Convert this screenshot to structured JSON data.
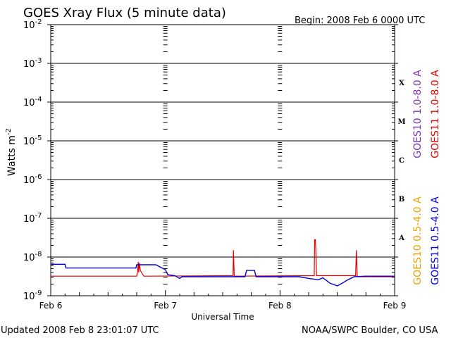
{
  "header": {
    "title": "GOES Xray Flux (5 minute data)",
    "begin": "Begin:  2008 Feb 6 0000 UTC"
  },
  "footer": {
    "updated": "Updated 2008 Feb  8 23:01:07 UTC",
    "credit": "NOAA/SWPC Boulder, CO USA"
  },
  "colors": {
    "goes10_long": "#7b2fb5",
    "goes11_long": "#e00000",
    "goes10_short": "#f0a000",
    "goes11_short": "#0000e0"
  },
  "chart_data": {
    "type": "line",
    "title": "GOES Xray Flux (5 minute data)",
    "xlabel": "Universal Time",
    "ylabel": "Watts m",
    "ylabel_exp": "-2",
    "y_scale": "log",
    "ylim": [
      1e-09,
      0.01
    ],
    "xlim": [
      "2008-02-06T00:00",
      "2008-02-09T00:00"
    ],
    "x_ticks": [
      "Feb 6",
      "Feb 7",
      "Feb 8",
      "Feb 9"
    ],
    "y_ticks": [
      {
        "base": "10",
        "exp": "-2",
        "value": 0.01
      },
      {
        "base": "10",
        "exp": "-3",
        "value": 0.001
      },
      {
        "base": "10",
        "exp": "-4",
        "value": 0.0001
      },
      {
        "base": "10",
        "exp": "-5",
        "value": 1e-05
      },
      {
        "base": "10",
        "exp": "-6",
        "value": 1e-06
      },
      {
        "base": "10",
        "exp": "-7",
        "value": 1e-07
      },
      {
        "base": "10",
        "exp": "-8",
        "value": 1e-08
      },
      {
        "base": "10",
        "exp": "-9",
        "value": 1e-09
      }
    ],
    "flare_classes": [
      {
        "label": "X",
        "value": 0.00032
      },
      {
        "label": "M",
        "value": 3.2e-05
      },
      {
        "label": "C",
        "value": 3.2e-06
      },
      {
        "label": "B",
        "value": 3.2e-07
      },
      {
        "label": "A",
        "value": 3.2e-08
      }
    ],
    "legend": [
      {
        "label": "GOES10 1.0-8.0 A",
        "color": "#7b2fb5"
      },
      {
        "label": "GOES11 1.0-8.0 A",
        "color": "#e00000"
      },
      {
        "label": "GOES10 0.5-4.0 A",
        "color": "#f0a000"
      },
      {
        "label": "GOES11 0.5-4.0 A",
        "color": "#0000e0"
      }
    ],
    "grid": true,
    "series": [
      {
        "name": "GOES11 1.0-8.0 A",
        "color": "#e00000",
        "x": [
          "2008-02-06T00:00",
          "2008-02-06T18:00",
          "2008-02-06T18:10",
          "2008-02-06T18:20",
          "2008-02-06T18:25",
          "2008-02-06T18:35",
          "2008-02-06T18:45",
          "2008-02-06T19:00",
          "2008-02-06T19:30",
          "2008-02-06T20:00",
          "2008-02-07T14:10",
          "2008-02-07T14:15",
          "2008-02-07T14:25",
          "2008-02-07T14:35",
          "2008-02-08T07:10",
          "2008-02-08T07:15",
          "2008-02-08T07:25",
          "2008-02-08T07:40",
          "2008-02-08T15:50",
          "2008-02-08T16:00",
          "2008-02-08T16:10",
          "2008-02-08T16:25",
          "2008-02-09T00:00"
        ],
        "values": [
          3.2e-09,
          3.2e-09,
          4e-09,
          7.5e-09,
          4e-09,
          7e-09,
          4.5e-09,
          4e-09,
          3.2e-09,
          3.2e-09,
          3.3e-09,
          1.5e-08,
          3.3e-09,
          3.2e-09,
          3.3e-09,
          2.8e-08,
          2.8e-08,
          3.3e-09,
          3.3e-09,
          1.5e-08,
          3.3e-09,
          3.1e-09,
          3.1e-09
        ]
      },
      {
        "name": "GOES11 0.5-4.0 A",
        "color": "#0000e0",
        "x": [
          "2008-02-06T00:00",
          "2008-02-06T03:00",
          "2008-02-06T03:10",
          "2008-02-06T12:00",
          "2008-02-06T17:50",
          "2008-02-06T18:00",
          "2008-02-06T22:00",
          "2008-02-07T00:00",
          "2008-02-07T00:30",
          "2008-02-07T02:00",
          "2008-02-07T03:00",
          "2008-02-07T03:30",
          "2008-02-07T04:00",
          "2008-02-07T12:00",
          "2008-02-07T16:40",
          "2008-02-07T17:00",
          "2008-02-07T18:40",
          "2008-02-07T19:00",
          "2008-02-07T20:00",
          "2008-02-08T00:00",
          "2008-02-08T04:00",
          "2008-02-08T06:00",
          "2008-02-08T08:00",
          "2008-02-08T09:00",
          "2008-02-08T10:30",
          "2008-02-08T12:00",
          "2008-02-08T13:00",
          "2008-02-08T14:00",
          "2008-02-08T15:30",
          "2008-02-08T18:00",
          "2008-02-09T00:00"
        ],
        "values": [
          6.5e-09,
          6.5e-09,
          5.2e-09,
          5.2e-09,
          5.2e-09,
          6.3e-09,
          6.3e-09,
          4.7e-09,
          3.5e-09,
          3.3e-09,
          2.8e-09,
          3.1e-09,
          3.1e-09,
          3.1e-09,
          3.1e-09,
          4.5e-09,
          4.5e-09,
          3.1e-09,
          3.1e-09,
          3.1e-09,
          3.1e-09,
          2.8e-09,
          2.6e-09,
          2.9e-09,
          2.1e-09,
          1.8e-09,
          2.1e-09,
          2.5e-09,
          3.1e-09,
          3.2e-09,
          3.2e-09
        ]
      }
    ]
  }
}
